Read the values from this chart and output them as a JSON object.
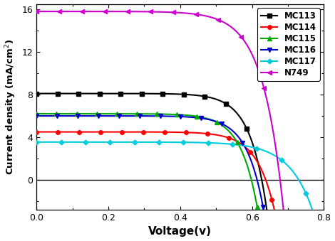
{
  "xlabel": "Voltage(v)",
  "ylabel": "Current density (mA/cm$^{2}$)",
  "xlim": [
    0.0,
    0.8
  ],
  "ylim": [
    -2.8,
    16.5
  ],
  "yticks": [
    0,
    4,
    8,
    12,
    16
  ],
  "xticks": [
    0.0,
    0.2,
    0.4,
    0.6,
    0.8
  ],
  "curves": [
    {
      "label": "MC113",
      "color": "#000000",
      "marker": "s",
      "jsc": 8.1,
      "voc": 0.627,
      "n_ideal": 1.8,
      "ms": 4.0
    },
    {
      "label": "MC114",
      "color": "#ff0000",
      "marker": "o",
      "jsc": 4.5,
      "voc": 0.638,
      "n_ideal": 1.9,
      "ms": 4.0
    },
    {
      "label": "MC115",
      "color": "#00aa00",
      "marker": "^",
      "jsc": 6.2,
      "voc": 0.598,
      "n_ideal": 1.8,
      "ms": 4.0
    },
    {
      "label": "MC116",
      "color": "#0000cc",
      "marker": "v",
      "jsc": 6.0,
      "voc": 0.614,
      "n_ideal": 1.8,
      "ms": 4.0
    },
    {
      "label": "MC117",
      "color": "#00ccdd",
      "marker": "D",
      "jsc": 3.55,
      "voc": 0.73,
      "n_ideal": 2.5,
      "ms": 3.5
    },
    {
      "label": "N749",
      "color": "#cc00cc",
      "marker": "<",
      "jsc": 15.8,
      "voc": 0.678,
      "n_ideal": 2.2,
      "ms": 4.0
    }
  ]
}
